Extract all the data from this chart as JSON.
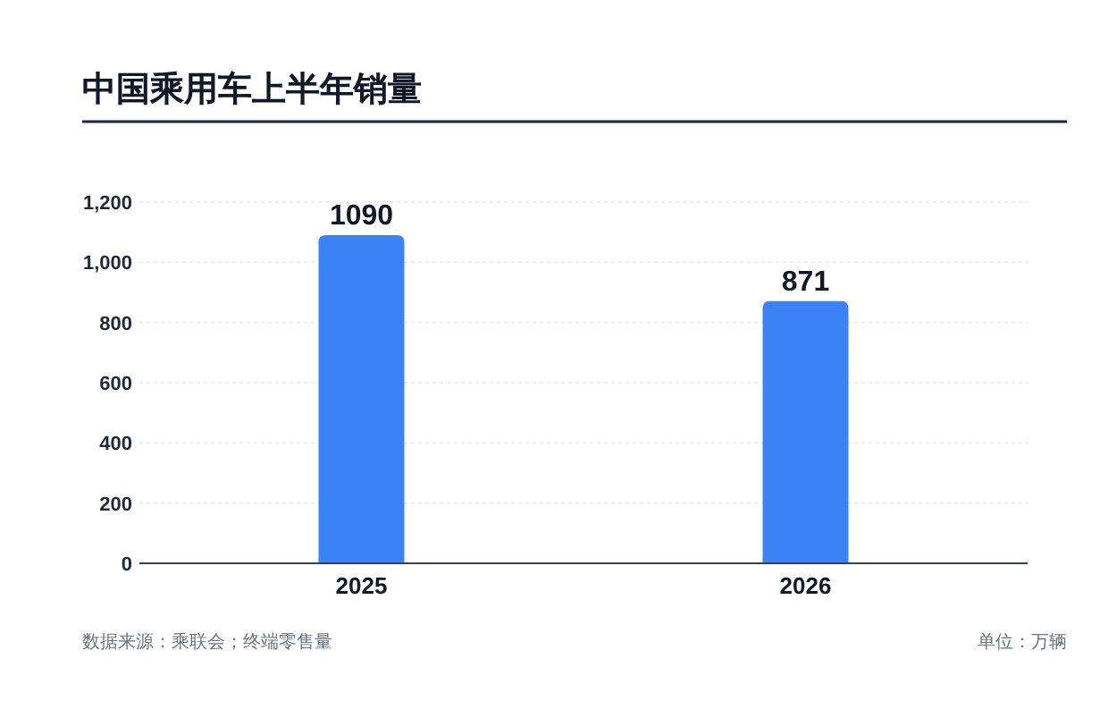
{
  "chart_data": {
    "type": "bar",
    "title": "中国乘用车上半年销量",
    "categories": [
      "2025",
      "2026"
    ],
    "values": [
      1090,
      871
    ],
    "color": "#3b82f6",
    "ylim": [
      0,
      1200
    ],
    "yticks": [
      0,
      200,
      400,
      600,
      800,
      {
        "value": 1000,
        "label": "1,000"
      },
      {
        "value": 1200,
        "label": "1,200"
      }
    ],
    "grid": "y",
    "data_labels": true,
    "annotations": [
      "数据来源：乘联会；终端零售量",
      "单位：万辆"
    ]
  }
}
